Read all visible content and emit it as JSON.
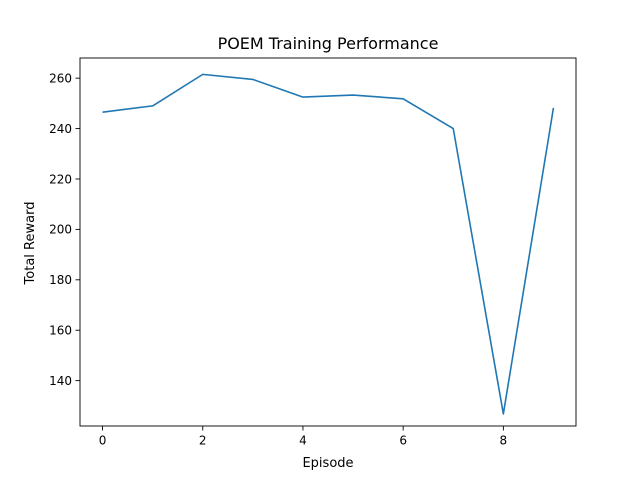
{
  "chart_data": {
    "type": "line",
    "title": "POEM Training Performance",
    "xlabel": "Episode",
    "ylabel": "Total Reward",
    "xlim": [
      -0.45,
      9.45
    ],
    "ylim": [
      122,
      268
    ],
    "xticks": [
      0,
      2,
      4,
      6,
      8
    ],
    "yticks": [
      140,
      160,
      180,
      200,
      220,
      240,
      260
    ],
    "grid": false,
    "legend": "none",
    "series": [
      {
        "color": "#1f77b4",
        "x": [
          0,
          1,
          2,
          3,
          4,
          5,
          6,
          7,
          8,
          9
        ],
        "y": [
          246.5,
          249.0,
          261.5,
          259.5,
          252.5,
          253.3,
          251.8,
          240.0,
          126.8,
          248.2
        ]
      }
    ]
  }
}
